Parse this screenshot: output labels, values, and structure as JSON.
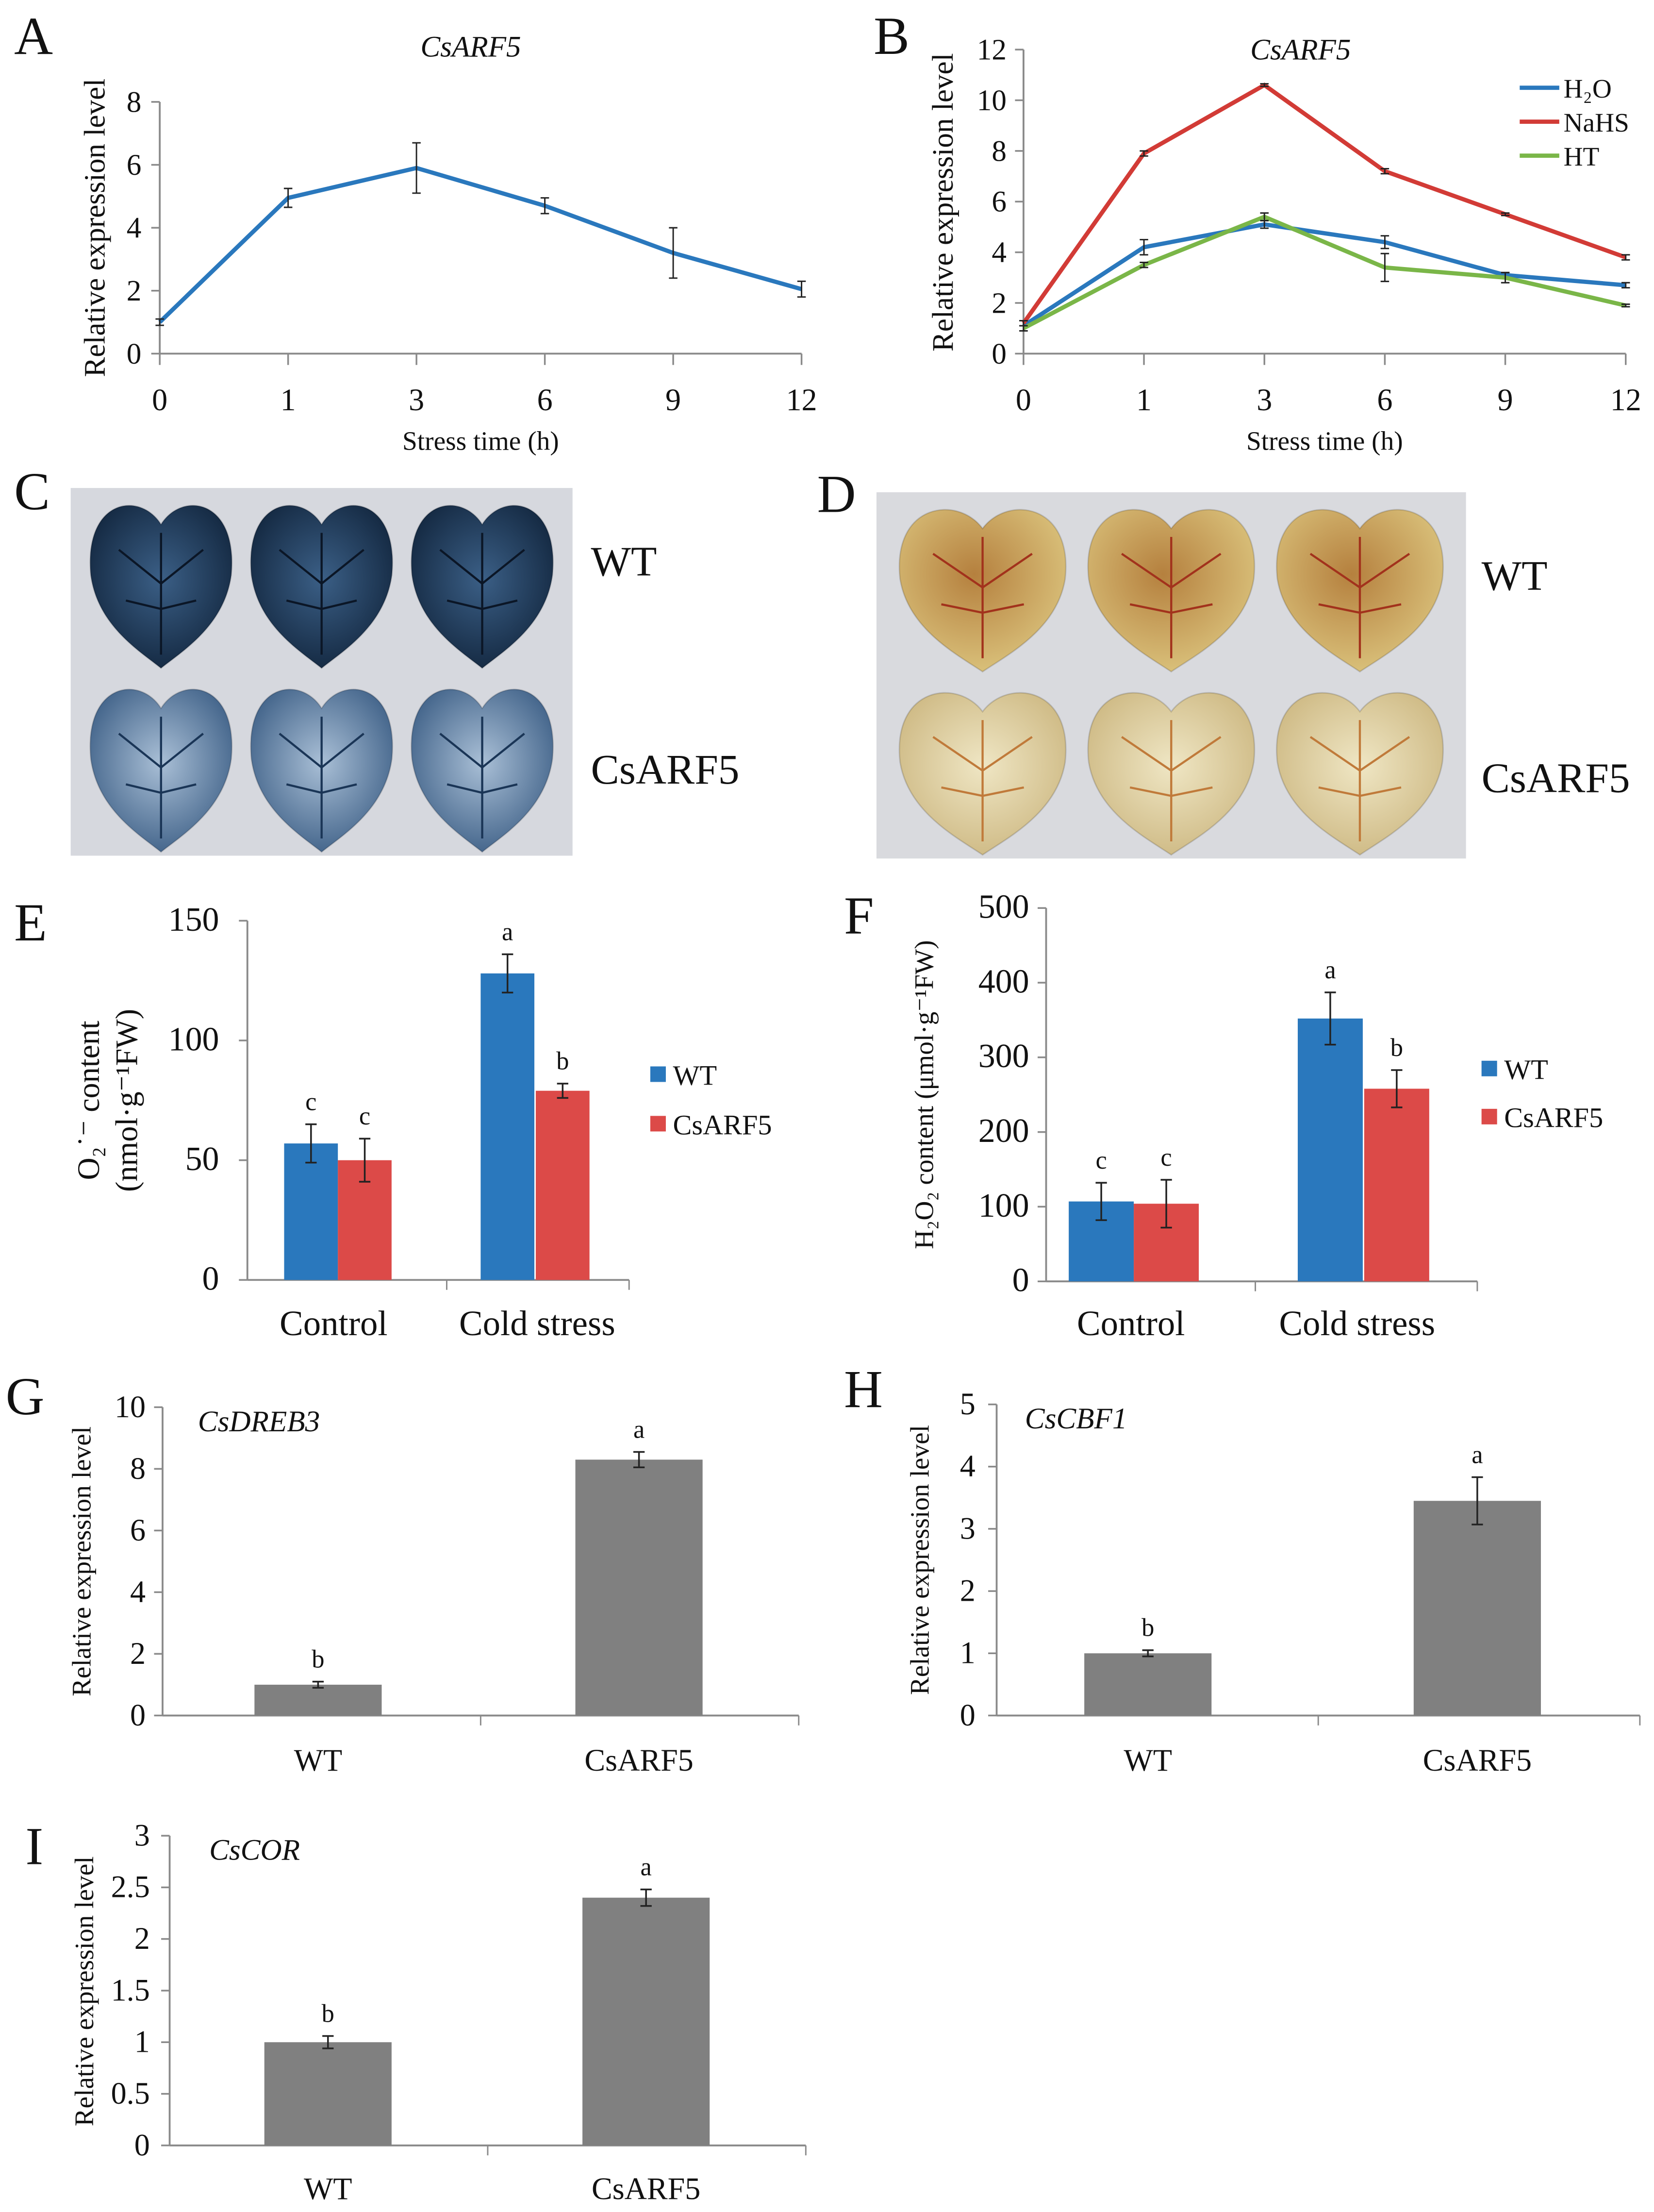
{
  "chart_data": [
    {
      "id": "A",
      "letter": "A",
      "type": "line",
      "title": "CsARF5",
      "xlabel": "Stress time (h)",
      "ylabel": "Relative expression level",
      "categories": [
        "0",
        "1",
        "3",
        "6",
        "9",
        "12"
      ],
      "ylim": [
        0,
        8
      ],
      "yticks": [
        "0",
        "2",
        "4",
        "6",
        "8"
      ],
      "series": [
        {
          "name": "CsARF5",
          "color": "#2a78bd",
          "values": [
            1.0,
            4.95,
            5.9,
            4.7,
            3.2,
            2.05
          ],
          "errors": [
            0.1,
            0.3,
            0.8,
            0.25,
            0.8,
            0.25
          ]
        }
      ]
    },
    {
      "id": "B",
      "letter": "B",
      "type": "line",
      "title": "CsARF5",
      "xlabel": "Stress time (h)",
      "ylabel": "Relative expression level",
      "categories": [
        "0",
        "1",
        "3",
        "6",
        "9",
        "12"
      ],
      "ylim": [
        0,
        12
      ],
      "yticks": [
        "0",
        "2",
        "4",
        "6",
        "8",
        "10",
        "12"
      ],
      "legend": "top-right",
      "series": [
        {
          "name": "H₂O",
          "color": "#2a78bd",
          "values": [
            1.1,
            4.2,
            5.1,
            4.4,
            3.1,
            2.7
          ],
          "errors": [
            0.2,
            0.3,
            0.15,
            0.25,
            0.1,
            0.1
          ]
        },
        {
          "name": "NaHS",
          "color": "#d23b36",
          "values": [
            1.2,
            7.9,
            10.6,
            7.2,
            5.5,
            3.8
          ],
          "errors": [
            0.1,
            0.1,
            0.05,
            0.1,
            0.05,
            0.1
          ]
        },
        {
          "name": "HT",
          "color": "#7ab648",
          "values": [
            1.0,
            3.5,
            5.4,
            3.4,
            3.0,
            1.9
          ],
          "errors": [
            0.1,
            0.1,
            0.15,
            0.55,
            0.2,
            0.05
          ]
        }
      ]
    },
    {
      "id": "E",
      "letter": "E",
      "type": "bar",
      "ylabel": "O₂˙⁻ content",
      "ylabel2": "(nmol·g⁻¹FW)",
      "categories": [
        "Control",
        "Cold  stress"
      ],
      "ylim": [
        0,
        150
      ],
      "yticks": [
        "0",
        "50",
        "100",
        "150"
      ],
      "legend": "right",
      "series": [
        {
          "name": "WT",
          "color": "#2a78bd",
          "values": [
            57,
            128
          ],
          "errors": [
            8,
            8
          ],
          "letters": [
            "c",
            "a"
          ]
        },
        {
          "name": "CsARF5",
          "color": "#dc4a48",
          "values": [
            50,
            79
          ],
          "errors": [
            9,
            3
          ],
          "letters": [
            "c",
            "b"
          ]
        }
      ]
    },
    {
      "id": "F",
      "letter": "F",
      "type": "bar",
      "ylabel": "H₂O₂ content (μmol·g⁻¹FW)",
      "categories": [
        "Control",
        "Cold  stress"
      ],
      "ylim": [
        0,
        500
      ],
      "yticks": [
        "0",
        "100",
        "200",
        "300",
        "400",
        "500"
      ],
      "legend": "right",
      "series": [
        {
          "name": "WT",
          "color": "#2a78bd",
          "values": [
            107,
            352
          ],
          "errors": [
            25,
            35
          ],
          "letters": [
            "c",
            "a"
          ]
        },
        {
          "name": "CsARF5",
          "color": "#dc4a48",
          "values": [
            104,
            258
          ],
          "errors": [
            32,
            25
          ],
          "letters": [
            "c",
            "b"
          ]
        }
      ]
    },
    {
      "id": "G",
      "letter": "G",
      "type": "bar",
      "title": "CsDREB3",
      "ylabel": "Relative expression level",
      "categories": [
        "WT",
        "CsARF5"
      ],
      "ylim": [
        0,
        10
      ],
      "yticks": [
        "0",
        "2",
        "4",
        "6",
        "8",
        "10"
      ],
      "series": [
        {
          "name": "",
          "color": "#808080",
          "values": [
            1.0,
            8.3
          ],
          "errors": [
            0.1,
            0.25
          ],
          "letters": [
            "b",
            "a"
          ]
        }
      ]
    },
    {
      "id": "H",
      "letter": "H",
      "type": "bar",
      "title": "CsCBF1",
      "ylabel": "Relative expression level",
      "categories": [
        "WT",
        "CsARF5"
      ],
      "ylim": [
        0,
        5
      ],
      "yticks": [
        "0",
        "1",
        "2",
        "3",
        "4",
        "5"
      ],
      "series": [
        {
          "name": "",
          "color": "#808080",
          "values": [
            1.0,
            3.45
          ],
          "errors": [
            0.05,
            0.38
          ],
          "letters": [
            "b",
            "a"
          ]
        }
      ]
    },
    {
      "id": "I",
      "letter": "I",
      "type": "bar",
      "title": "CsCOR",
      "ylabel": "Relative expression level",
      "categories": [
        "WT",
        "CsARF5"
      ],
      "ylim": [
        0,
        3
      ],
      "yticks": [
        "0",
        "0.5",
        "1",
        "1.5",
        "2",
        "2.5",
        "3"
      ],
      "series": [
        {
          "name": "",
          "color": "#808080",
          "values": [
            1.0,
            2.4
          ],
          "errors": [
            0.06,
            0.08
          ],
          "letters": [
            "b",
            "a"
          ]
        }
      ]
    }
  ],
  "photos": [
    {
      "id": "C",
      "letter": "C",
      "rows": [
        "WT",
        "CsARF5"
      ]
    },
    {
      "id": "D",
      "letter": "D",
      "rows": [
        "WT",
        "CsARF5"
      ]
    }
  ]
}
